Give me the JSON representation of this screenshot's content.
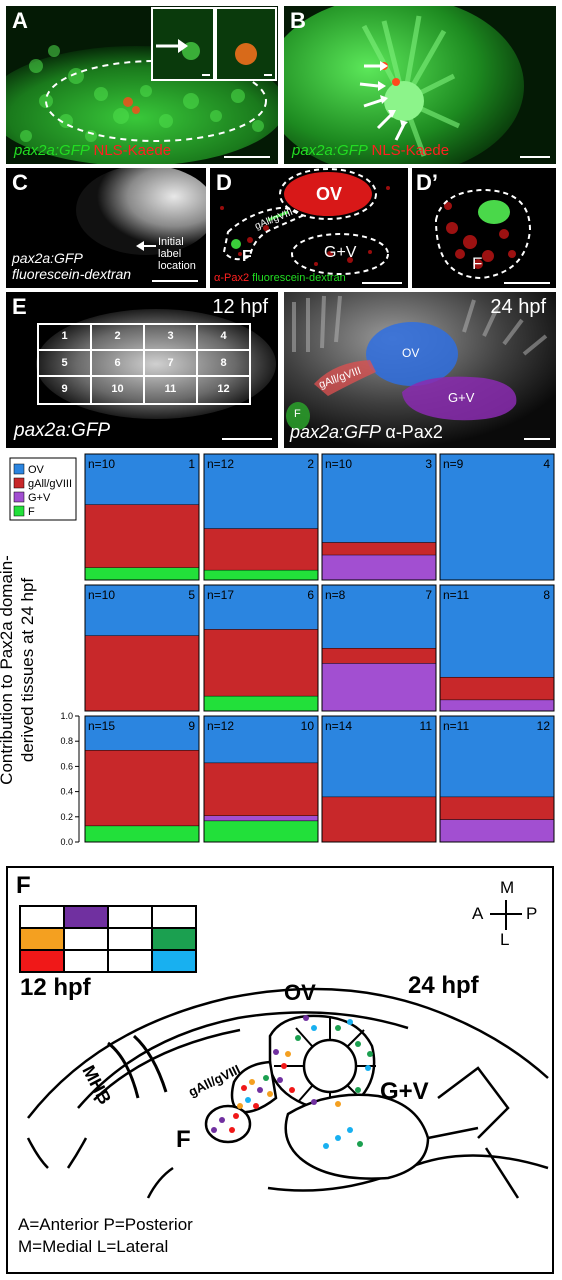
{
  "panels": {
    "A": {
      "label": "A",
      "caption_green": "pax2a:GFP",
      "caption_red": "NLS-Kaede"
    },
    "B": {
      "label": "B",
      "caption_green": "pax2a:GFP",
      "caption_red": "NLS-Kaede"
    },
    "C": {
      "label": "C",
      "caption_line1": "pax2a:GFP",
      "caption_line2": "fluorescein-dextran",
      "arrow_text_1": "Initial label",
      "arrow_text_2": "location"
    },
    "D": {
      "label": "D",
      "region_ov": "OV",
      "region_gall": "gAll/gVIII",
      "region_f": "F",
      "region_gv": "G+V",
      "caption_red": "α-Pax2",
      "caption_green": "fluorescein-dextran"
    },
    "D2": {
      "label": "D’",
      "region_f": "F"
    },
    "E_left": {
      "label": "E",
      "time": "12 hpf",
      "caption": "pax2a:GFP",
      "grid": [
        "1",
        "2",
        "3",
        "4",
        "5",
        "6",
        "7",
        "8",
        "9",
        "10",
        "11",
        "12"
      ]
    },
    "E_right": {
      "time": "24 hpf",
      "caption_italic": "pax2a:GFP",
      "caption_plain": "α-Pax2",
      "region_ov": "OV",
      "region_gall": "gAll/gVIII",
      "region_gv": "G+V",
      "region_f": "F"
    },
    "F": {
      "label": "F",
      "time_left": "12 hpf",
      "time_right": "24 hpf",
      "compass_m": "M",
      "compass_a": "A",
      "compass_p": "P",
      "compass_l": "L",
      "mhb": "MHB",
      "ov": "OV",
      "gall": "gAll/gVIII",
      "gv": "G+V",
      "f": "F",
      "legend_line1": "A=Anterior P=Posterior",
      "legend_line2": "M=Medial L=Lateral"
    }
  },
  "chart_data": {
    "type": "bar",
    "ylabel": "Contribution to Pax2a domain-derived tissues at 24 hpf",
    "ylim": [
      0,
      1.0
    ],
    "yticks": [
      "0.0",
      "0.2",
      "0.4",
      "0.6",
      "0.8",
      "1.0"
    ],
    "legend": [
      {
        "name": "OV",
        "color": "#2b85e0"
      },
      {
        "name": "gAll/gVIII",
        "color": "#c8282a"
      },
      {
        "name": "G+V",
        "color": "#a24fd1"
      },
      {
        "name": "F",
        "color": "#22e03a"
      }
    ],
    "cells": [
      {
        "id": "1",
        "n": "n=10",
        "F": 0.1,
        "GV": 0.0,
        "gAll": 0.5,
        "OV": 0.4
      },
      {
        "id": "2",
        "n": "n=12",
        "F": 0.08,
        "GV": 0.0,
        "gAll": 0.33,
        "OV": 0.59
      },
      {
        "id": "3",
        "n": "n=10",
        "F": 0.0,
        "GV": 0.2,
        "gAll": 0.1,
        "OV": 0.7
      },
      {
        "id": "4",
        "n": "n=9",
        "F": 0.0,
        "GV": 0.0,
        "gAll": 0.0,
        "OV": 1.0
      },
      {
        "id": "5",
        "n": "n=10",
        "F": 0.0,
        "GV": 0.0,
        "gAll": 0.6,
        "OV": 0.4
      },
      {
        "id": "6",
        "n": "n=17",
        "F": 0.12,
        "GV": 0.0,
        "gAll": 0.53,
        "OV": 0.35
      },
      {
        "id": "7",
        "n": "n=8",
        "F": 0.0,
        "GV": 0.38,
        "gAll": 0.12,
        "OV": 0.5
      },
      {
        "id": "8",
        "n": "n=11",
        "F": 0.0,
        "GV": 0.09,
        "gAll": 0.18,
        "OV": 0.73
      },
      {
        "id": "9",
        "n": "n=15",
        "F": 0.13,
        "GV": 0.0,
        "gAll": 0.6,
        "OV": 0.27
      },
      {
        "id": "10",
        "n": "n=12",
        "F": 0.17,
        "GV": 0.04,
        "gAll": 0.42,
        "OV": 0.37
      },
      {
        "id": "11",
        "n": "n=14",
        "F": 0.0,
        "GV": 0.0,
        "gAll": 0.36,
        "OV": 0.64
      },
      {
        "id": "12",
        "n": "n=11",
        "F": 0.0,
        "GV": 0.18,
        "gAll": 0.18,
        "OV": 0.64
      }
    ]
  }
}
